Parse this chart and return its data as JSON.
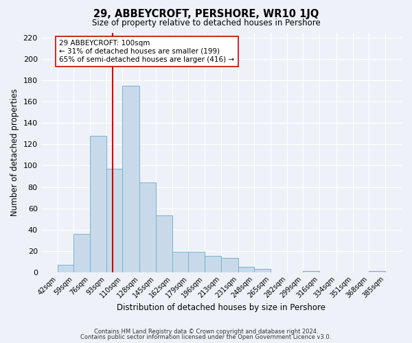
{
  "title": "29, ABBEYCROFT, PERSHORE, WR10 1JQ",
  "subtitle": "Size of property relative to detached houses in Pershore",
  "xlabel": "Distribution of detached houses by size in Pershore",
  "ylabel": "Number of detached properties",
  "bar_color": "#c8daea",
  "bar_edge_color": "#7aafd4",
  "bin_edges": [
    42,
    59,
    76,
    93,
    110,
    128,
    145,
    162,
    179,
    196,
    213,
    231,
    248,
    265,
    282,
    299,
    316,
    334,
    351,
    368,
    385
  ],
  "bar_heights": [
    7,
    36,
    128,
    97,
    175,
    84,
    53,
    19,
    19,
    15,
    13,
    5,
    3,
    0,
    0,
    1,
    0,
    0,
    0,
    1
  ],
  "tick_labels": [
    "42sqm",
    "59sqm",
    "76sqm",
    "93sqm",
    "110sqm",
    "128sqm",
    "145sqm",
    "162sqm",
    "179sqm",
    "196sqm",
    "213sqm",
    "231sqm",
    "248sqm",
    "265sqm",
    "282sqm",
    "299sqm",
    "316sqm",
    "334sqm",
    "351sqm",
    "368sqm",
    "385sqm"
  ],
  "vline_x": 100,
  "vline_color": "#cc0000",
  "ylim": [
    0,
    225
  ],
  "yticks": [
    0,
    20,
    40,
    60,
    80,
    100,
    120,
    140,
    160,
    180,
    200,
    220
  ],
  "annotation_title": "29 ABBEYCROFT: 100sqm",
  "annotation_line1": "← 31% of detached houses are smaller (199)",
  "annotation_line2": "65% of semi-detached houses are larger (416) →",
  "footer_line1": "Contains HM Land Registry data © Crown copyright and database right 2024.",
  "footer_line2": "Contains public sector information licensed under the Open Government Licence v3.0.",
  "background_color": "#eef2f8",
  "plot_bg_color": "#eef2f8",
  "grid_color": "#ffffff"
}
